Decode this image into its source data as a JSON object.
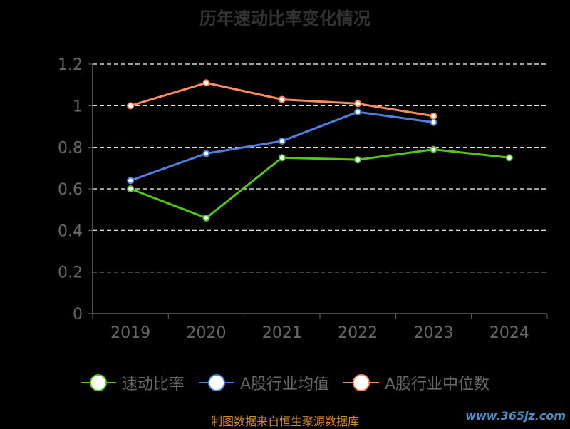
{
  "chart_data": {
    "type": "line",
    "title": "历年速动比率变化情况",
    "categories": [
      "2019",
      "2020",
      "2021",
      "2022",
      "2023",
      "2024"
    ],
    "ylim": [
      0,
      1.2
    ],
    "yticks": [
      "0",
      "0.2",
      "0.4",
      "0.6",
      "0.8",
      "1",
      "1.2"
    ],
    "grid": true,
    "legend_position": "bottom",
    "series": [
      {
        "name": "速动比率",
        "color": "#52c41a",
        "values": [
          0.6,
          0.46,
          0.75,
          0.74,
          0.79,
          0.75
        ]
      },
      {
        "name": "A股行业均值",
        "color": "#4e7fe0",
        "values": [
          0.64,
          0.77,
          0.83,
          0.97,
          0.92,
          null
        ]
      },
      {
        "name": "A股行业中位数",
        "color": "#ff8c5a",
        "values": [
          1.0,
          1.11,
          1.03,
          1.01,
          0.95,
          null
        ]
      }
    ]
  },
  "source": "制图数据来自恒生聚源数据库",
  "watermark": "www.365jz.com",
  "colors": {
    "background": "#000000",
    "axis": "#666666",
    "grid": "#ffffff",
    "tick_text": "#666666"
  }
}
